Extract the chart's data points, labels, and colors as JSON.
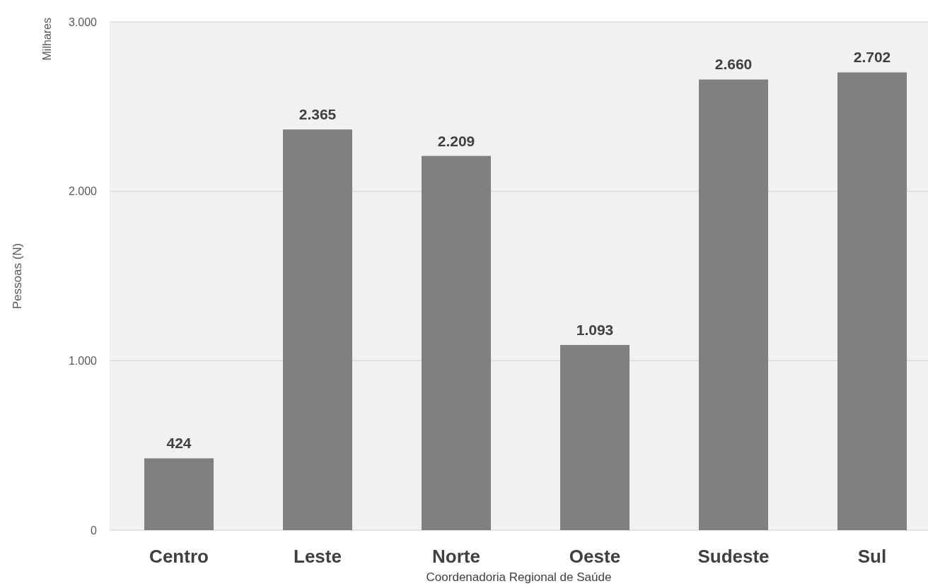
{
  "chart_data": {
    "type": "bar",
    "categories": [
      "Centro",
      "Leste",
      "Norte",
      "Oeste",
      "Sudeste",
      "Sul"
    ],
    "values": [
      424,
      2365,
      2209,
      1093,
      2660,
      2702
    ],
    "value_labels": [
      "424",
      "2.365",
      "2.209",
      "1.093",
      "2.660",
      "2.702"
    ],
    "color": "#808080",
    "ylim": [
      0,
      3000
    ],
    "yticks": [
      0,
      {
        "value": 1000,
        "label": "1.000"
      },
      {
        "value": 2000,
        "label": "2.000"
      },
      {
        "value": 3000,
        "label": "3.000"
      }
    ],
    "ylabel": "Pessoas (N)",
    "xlabel": "Coordenadoria Regional de Saúde",
    "annotations": [
      "Milhares"
    ],
    "grid": "y"
  }
}
